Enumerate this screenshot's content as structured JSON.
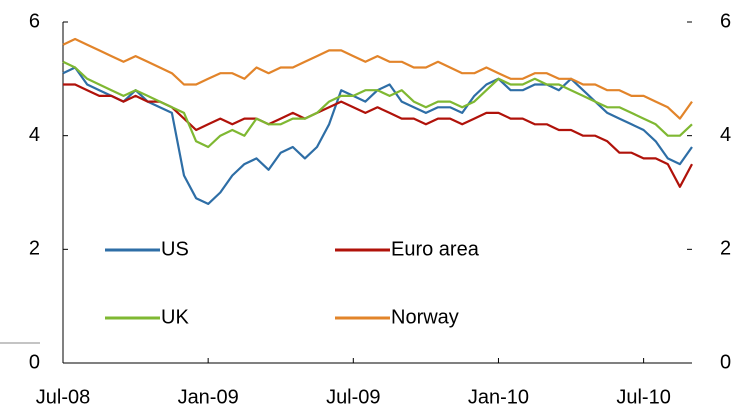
{
  "chart_data": {
    "type": "line",
    "categories": [
      "Jul-08",
      null,
      null,
      null,
      null,
      null,
      null,
      null,
      null,
      null,
      null,
      null,
      "Jan-09",
      null,
      null,
      null,
      null,
      null,
      null,
      null,
      null,
      null,
      null,
      null,
      "Jul-09",
      null,
      null,
      null,
      null,
      null,
      null,
      null,
      null,
      null,
      null,
      null,
      "Jan-10",
      null,
      null,
      null,
      null,
      null,
      null,
      null,
      null,
      null,
      null,
      null,
      "Jul-10",
      null,
      null,
      null,
      null
    ],
    "series": [
      {
        "name": "US",
        "color": "#2e6ea6",
        "values": [
          5.1,
          5.2,
          4.9,
          4.8,
          4.7,
          4.6,
          4.8,
          4.6,
          4.5,
          4.4,
          3.3,
          2.9,
          2.8,
          3.0,
          3.3,
          3.5,
          3.6,
          3.4,
          3.7,
          3.8,
          3.6,
          3.8,
          4.2,
          4.8,
          4.7,
          4.6,
          4.8,
          4.9,
          4.6,
          4.5,
          4.4,
          4.5,
          4.5,
          4.4,
          4.7,
          4.9,
          5.0,
          4.8,
          4.8,
          4.9,
          4.9,
          4.8,
          5.0,
          4.8,
          4.6,
          4.4,
          4.3,
          4.2,
          4.1,
          3.9,
          3.6,
          3.5,
          3.8
        ]
      },
      {
        "name": "Euro area",
        "color": "#b0120a",
        "values": [
          4.9,
          4.9,
          4.8,
          4.7,
          4.7,
          4.6,
          4.7,
          4.6,
          4.6,
          4.5,
          4.3,
          4.1,
          4.2,
          4.3,
          4.2,
          4.3,
          4.3,
          4.2,
          4.3,
          4.4,
          4.3,
          4.4,
          4.5,
          4.6,
          4.5,
          4.4,
          4.5,
          4.4,
          4.3,
          4.3,
          4.2,
          4.3,
          4.3,
          4.2,
          4.3,
          4.4,
          4.4,
          4.3,
          4.3,
          4.2,
          4.2,
          4.1,
          4.1,
          4.0,
          4.0,
          3.9,
          3.7,
          3.7,
          3.6,
          3.6,
          3.5,
          3.1,
          3.5
        ]
      },
      {
        "name": "UK",
        "color": "#7fb832",
        "values": [
          5.3,
          5.2,
          5.0,
          4.9,
          4.8,
          4.7,
          4.8,
          4.7,
          4.6,
          4.5,
          4.4,
          3.9,
          3.8,
          4.0,
          4.1,
          4.0,
          4.3,
          4.2,
          4.2,
          4.3,
          4.3,
          4.4,
          4.6,
          4.7,
          4.7,
          4.8,
          4.8,
          4.7,
          4.8,
          4.6,
          4.5,
          4.6,
          4.6,
          4.5,
          4.6,
          4.8,
          5.0,
          4.9,
          4.9,
          5.0,
          4.9,
          4.9,
          4.8,
          4.7,
          4.6,
          4.5,
          4.5,
          4.4,
          4.3,
          4.2,
          4.0,
          4.0,
          4.2
        ]
      },
      {
        "name": "Norway",
        "color": "#e2842a",
        "values": [
          5.6,
          5.7,
          5.6,
          5.5,
          5.4,
          5.3,
          5.4,
          5.3,
          5.2,
          5.1,
          4.9,
          4.9,
          5.0,
          5.1,
          5.1,
          5.0,
          5.2,
          5.1,
          5.2,
          5.2,
          5.3,
          5.4,
          5.5,
          5.5,
          5.4,
          5.3,
          5.4,
          5.3,
          5.3,
          5.2,
          5.2,
          5.3,
          5.2,
          5.1,
          5.1,
          5.2,
          5.1,
          5.0,
          5.0,
          5.1,
          5.1,
          5.0,
          5.0,
          4.9,
          4.9,
          4.8,
          4.8,
          4.7,
          4.7,
          4.6,
          4.5,
          4.3,
          4.6
        ]
      }
    ],
    "ylim": [
      0,
      6
    ],
    "yticks": [
      0,
      2,
      4,
      6
    ],
    "legend": "lower-left"
  }
}
